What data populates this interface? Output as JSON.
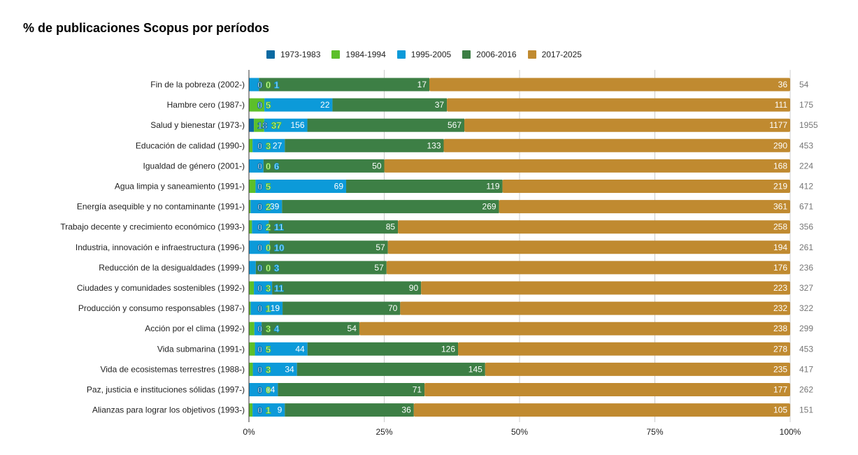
{
  "chart_data": {
    "type": "bar",
    "orientation": "horizontal",
    "stacked": "percent",
    "title": "% de publicaciones Scopus por períodos",
    "xlabel": "",
    "ylabel": "",
    "xlim": [
      0,
      100
    ],
    "x_ticks": [
      "0%",
      "25%",
      "50%",
      "75%",
      "100%"
    ],
    "grid": true,
    "legend_position": "top",
    "categories": [
      "Fin de la pobreza (2002-)",
      "Hambre cero (1987-)",
      "Salud y bienestar (1973-)",
      "Educación de calidad (1990-)",
      "Igualdad de género (2001-)",
      "Agua limpia y saneamiento (1991-)",
      "Energía asequible y no contaminante (1991-)",
      "Trabajo decente y crecimiento económico (1993-)",
      "Industria, innovación e infraestructura (1996-)",
      "Reducción de la desigualdades (1999-)",
      "Ciudades y comunidades sostenibles (1992-)",
      "Producción y consumo responsables (1987-)",
      "Acción por el clima (1992-)",
      "Vida submarina (1991-)",
      "Vida de ecosistemas terrestres (1988-)",
      "Paz, justicia e instituciones sólidas (1997-)",
      "Alianzas para lograr los objetivos (1993-)"
    ],
    "series": [
      {
        "name": "1973-1983",
        "color": "#0b6aa2",
        "values": [
          0,
          0,
          18,
          0,
          0,
          0,
          0,
          0,
          0,
          0,
          0,
          0,
          0,
          0,
          0,
          0,
          0
        ]
      },
      {
        "name": "1984-1994",
        "color": "#5cbf2a",
        "values": [
          0,
          5,
          37,
          3,
          0,
          5,
          2,
          2,
          0,
          0,
          3,
          1,
          3,
          5,
          3,
          0,
          1
        ]
      },
      {
        "name": "1995-2005",
        "color": "#0c9ad9",
        "values": [
          1,
          22,
          156,
          27,
          6,
          69,
          39,
          11,
          10,
          3,
          11,
          19,
          4,
          44,
          34,
          14,
          9
        ]
      },
      {
        "name": "2006-2016",
        "color": "#3d7f45",
        "values": [
          17,
          37,
          567,
          133,
          50,
          119,
          269,
          85,
          57,
          57,
          90,
          70,
          54,
          126,
          145,
          71,
          36
        ]
      },
      {
        "name": "2017-2025",
        "color": "#c08a30",
        "values": [
          36,
          111,
          1177,
          290,
          168,
          219,
          361,
          258,
          194,
          176,
          223,
          232,
          238,
          278,
          235,
          177,
          105
        ]
      }
    ],
    "totals": [
      54,
      175,
      1955,
      453,
      224,
      412,
      671,
      356,
      261,
      236,
      327,
      322,
      299,
      453,
      417,
      262,
      151
    ]
  }
}
